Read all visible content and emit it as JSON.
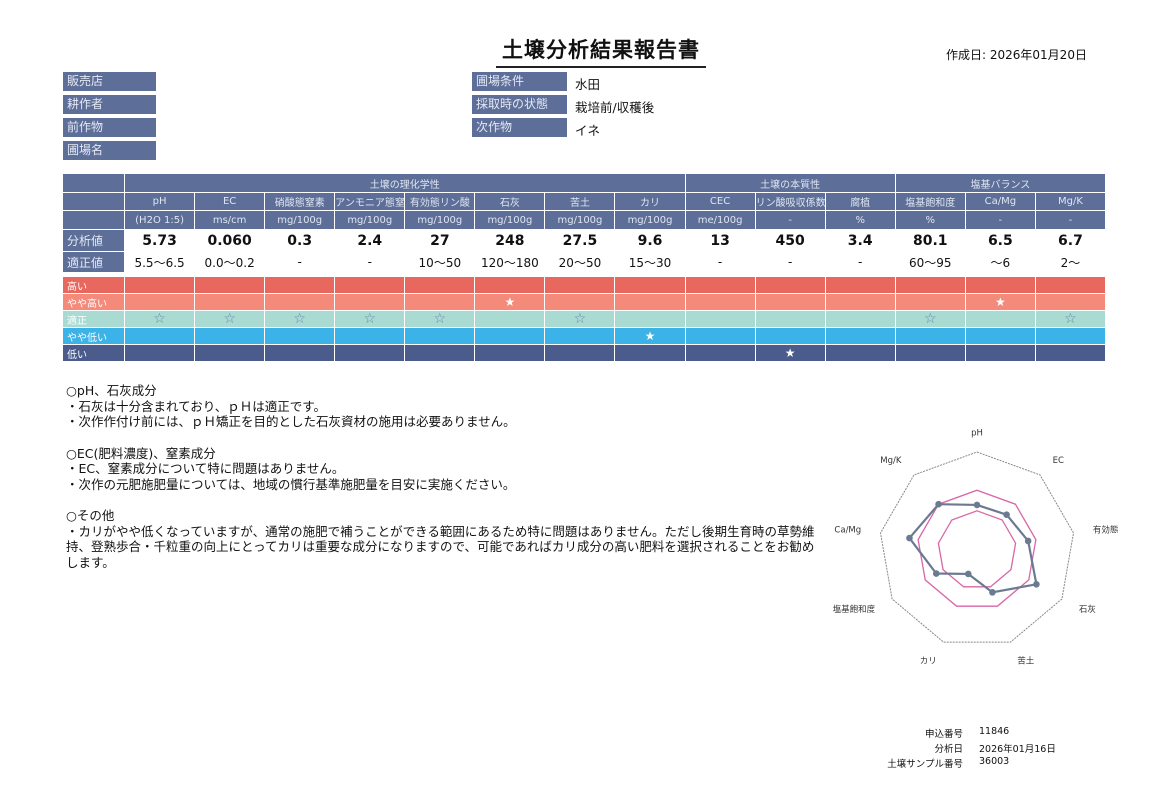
{
  "header": {
    "title": "土壌分析結果報告書",
    "created_label": "作成日:",
    "created_date": "2026年01月20日"
  },
  "info_left": [
    {
      "label": "販売店",
      "value": ""
    },
    {
      "label": "耕作者",
      "value": ""
    },
    {
      "label": "前作物",
      "value": ""
    },
    {
      "label": "圃場名",
      "value": ""
    }
  ],
  "info_right": [
    {
      "label": "圃場条件",
      "value": "水田"
    },
    {
      "label": "採取時の状態",
      "value": "栽培前/収穫後"
    },
    {
      "label": "次作物",
      "value": "イネ"
    }
  ],
  "table": {
    "groups": [
      {
        "label": "土壌の理化学性",
        "span": 8
      },
      {
        "label": "土壌の本質性",
        "span": 3
      },
      {
        "label": "塩基バランス",
        "span": 3
      }
    ],
    "columns": [
      {
        "name": "pH",
        "unit": "(H2O 1:5)",
        "value": "5.73",
        "range": "5.5〜6.5",
        "level": "適正"
      },
      {
        "name": "EC",
        "unit": "ms/cm",
        "value": "0.060",
        "range": "0.0〜0.2",
        "level": "適正"
      },
      {
        "name": "硝酸態窒素",
        "unit": "mg/100g",
        "value": "0.3",
        "range": "-",
        "level": "適正"
      },
      {
        "name": "アンモニア態窒素",
        "unit": "mg/100g",
        "value": "2.4",
        "range": "-",
        "level": "適正"
      },
      {
        "name": "有効態リン酸",
        "unit": "mg/100g",
        "value": "27",
        "range": "10〜50",
        "level": "適正"
      },
      {
        "name": "石灰",
        "unit": "mg/100g",
        "value": "248",
        "range": "120〜180",
        "level": "やや高い"
      },
      {
        "name": "苦土",
        "unit": "mg/100g",
        "value": "27.5",
        "range": "20〜50",
        "level": "適正"
      },
      {
        "name": "カリ",
        "unit": "mg/100g",
        "value": "9.6",
        "range": "15〜30",
        "level": "やや低い"
      },
      {
        "name": "CEC",
        "unit": "me/100g",
        "value": "13",
        "range": "-",
        "level": ""
      },
      {
        "name": "リン酸吸収係数",
        "unit": "-",
        "value": "450",
        "range": "-",
        "level": "低い"
      },
      {
        "name": "腐植",
        "unit": "%",
        "value": "3.4",
        "range": "-",
        "level": ""
      },
      {
        "name": "塩基飽和度",
        "unit": "%",
        "value": "80.1",
        "range": "60〜95",
        "level": "適正"
      },
      {
        "name": "Ca/Mg",
        "unit": "-",
        "value": "6.5",
        "range": "〜6",
        "level": "やや高い"
      },
      {
        "name": "Mg/K",
        "unit": "-",
        "value": "6.7",
        "range": "2〜",
        "level": "適正"
      }
    ],
    "value_label": "分析値",
    "range_label": "適正値",
    "levels": [
      {
        "label": "高い",
        "color": "#e8675f"
      },
      {
        "label": "やや高い",
        "color": "#f38a7a"
      },
      {
        "label": "適正",
        "color": "#a9dbd3"
      },
      {
        "label": "やや低い",
        "color": "#3bb2e8"
      },
      {
        "label": "低い",
        "color": "#4a5b8c"
      }
    ],
    "star_filled": "★",
    "star_hollow": "☆"
  },
  "comments": [
    {
      "heading": "○pH、石灰成分",
      "lines": [
        "・石灰は十分含まれており、ｐＨは適正です。",
        "・次作作付け前には、ｐＨ矯正を目的とした石灰資材の施用は必要ありません。"
      ]
    },
    {
      "heading": "○EC(肥料濃度)、窒素成分",
      "lines": [
        "・EC、窒素成分について特に問題はありません。",
        "・次作の元肥施肥量については、地域の慣行基準施肥量を目安に実施ください。"
      ]
    },
    {
      "heading": "○その他",
      "lines": [
        "・カリがやや低くなっていますが、通常の施肥で補うことができる範囲にあるため特に問題はありません。ただし後期生育時の草勢維持、登熟歩合・千粒重の向上にとってカリは重要な成分になりますので、可能であればカリ成分の高い肥料を選択されることをお勧めします。"
      ]
    }
  ],
  "chart_data": {
    "type": "radar",
    "axes": [
      "pH",
      "EC",
      "有効態リン酸",
      "石灰",
      "苦土",
      "カリ",
      "塩基飽和度",
      "Ca/Mg",
      "Mg/K"
    ],
    "values": [
      0.46,
      0.47,
      0.53,
      0.7,
      0.46,
      0.26,
      0.48,
      0.7,
      0.61
    ],
    "proper_band": [
      0.4,
      0.61
    ],
    "series_color": "#6b7a92",
    "band_color": "#d966a6",
    "outer_color": "#888888"
  },
  "meta": [
    {
      "label": "申込番号",
      "value": "11846"
    },
    {
      "label": "分析日",
      "value": "2026年01月16日"
    },
    {
      "label": "土壌サンプル番号",
      "value": "36003"
    }
  ]
}
